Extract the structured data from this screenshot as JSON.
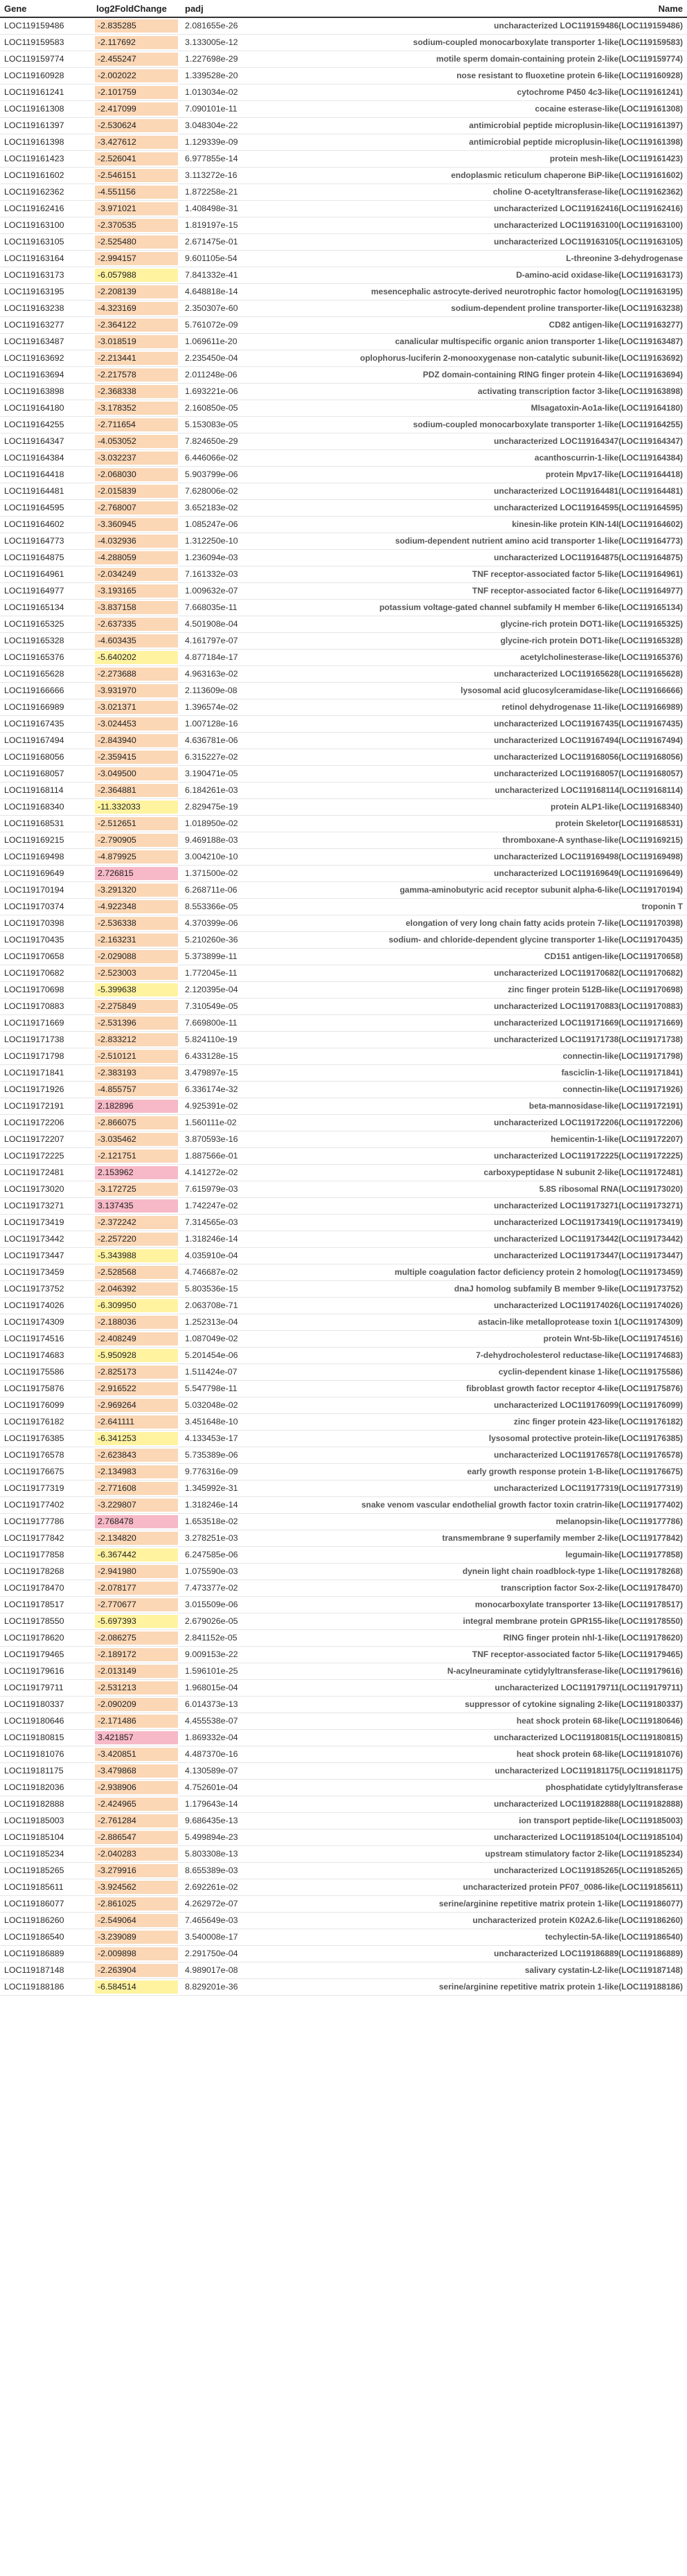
{
  "colors": {
    "neg": "#fbd7b6",
    "neg_strong": "#fff3a0",
    "pos": "#f7b9c7"
  },
  "headers": {
    "gene": "Gene",
    "lfc": "log2FoldChange",
    "padj": "padj",
    "name": "Name"
  },
  "rows": [
    [
      "LOC119159486",
      "-2.835285",
      "2.081655e-26",
      "uncharacterized LOC119159486(LOC119159486)"
    ],
    [
      "LOC119159583",
      "-2.117692",
      "3.133005e-12",
      "sodium-coupled monocarboxylate transporter 1-like(LOC119159583)"
    ],
    [
      "LOC119159774",
      "-2.455247",
      "1.227698e-29",
      "motile sperm domain-containing protein 2-like(LOC119159774)"
    ],
    [
      "LOC119160928",
      "-2.002022",
      "1.339528e-20",
      "nose resistant to fluoxetine protein 6-like(LOC119160928)"
    ],
    [
      "LOC119161241",
      "-2.101759",
      "1.013034e-02",
      "cytochrome P450 4c3-like(LOC119161241)"
    ],
    [
      "LOC119161308",
      "-2.417099",
      "7.090101e-11",
      "cocaine esterase-like(LOC119161308)"
    ],
    [
      "LOC119161397",
      "-2.530624",
      "3.048304e-22",
      "antimicrobial peptide microplusin-like(LOC119161397)"
    ],
    [
      "LOC119161398",
      "-3.427612",
      "1.129339e-09",
      "antimicrobial peptide microplusin-like(LOC119161398)"
    ],
    [
      "LOC119161423",
      "-2.526041",
      "6.977855e-14",
      "protein mesh-like(LOC119161423)"
    ],
    [
      "LOC119161602",
      "-2.546151",
      "3.113272e-16",
      "endoplasmic reticulum chaperone BiP-like(LOC119161602)"
    ],
    [
      "LOC119162362",
      "-4.551156",
      "1.872258e-21",
      "choline O-acetyltransferase-like(LOC119162362)"
    ],
    [
      "LOC119162416",
      "-3.971021",
      "1.408498e-31",
      "uncharacterized LOC119162416(LOC119162416)"
    ],
    [
      "LOC119163100",
      "-2.370535",
      "1.819197e-15",
      "uncharacterized LOC119163100(LOC119163100)"
    ],
    [
      "LOC119163105",
      "-2.525480",
      "2.671475e-01",
      "uncharacterized LOC119163105(LOC119163105)"
    ],
    [
      "LOC119163164",
      "-2.994157",
      "9.601105e-54",
      "L-threonine 3-dehydrogenase"
    ],
    [
      "LOC119163173",
      "-6.057988",
      "7.841332e-41",
      "D-amino-acid oxidase-like(LOC119163173)"
    ],
    [
      "LOC119163195",
      "-2.208139",
      "4.648818e-14",
      "mesencephalic astrocyte-derived neurotrophic factor homolog(LOC119163195)"
    ],
    [
      "LOC119163238",
      "-4.323169",
      "2.350307e-60",
      "sodium-dependent proline transporter-like(LOC119163238)"
    ],
    [
      "LOC119163277",
      "-2.364122",
      "5.761072e-09",
      "CD82 antigen-like(LOC119163277)"
    ],
    [
      "LOC119163487",
      "-3.018519",
      "1.069611e-20",
      "canalicular multispecific organic anion transporter 1-like(LOC119163487)"
    ],
    [
      "LOC119163692",
      "-2.213441",
      "2.235450e-04",
      "oplophorus-luciferin 2-monooxygenase non-catalytic subunit-like(LOC119163692)"
    ],
    [
      "LOC119163694",
      "-2.217578",
      "2.011248e-06",
      "PDZ domain-containing RING finger protein 4-like(LOC119163694)"
    ],
    [
      "LOC119163898",
      "-2.368338",
      "1.693221e-06",
      "activating transcription factor 3-like(LOC119163898)"
    ],
    [
      "LOC119164180",
      "-3.178352",
      "2.160850e-05",
      "MIsagatoxin-Ao1a-like(LOC119164180)"
    ],
    [
      "LOC119164255",
      "-2.711654",
      "5.153083e-05",
      "sodium-coupled monocarboxylate transporter 1-like(LOC119164255)"
    ],
    [
      "LOC119164347",
      "-4.053052",
      "7.824650e-29",
      "uncharacterized LOC119164347(LOC119164347)"
    ],
    [
      "LOC119164384",
      "-3.032237",
      "6.446066e-02",
      "acanthoscurrin-1-like(LOC119164384)"
    ],
    [
      "LOC119164418",
      "-2.068030",
      "5.903799e-06",
      "protein Mpv17-like(LOC119164418)"
    ],
    [
      "LOC119164481",
      "-2.015839",
      "7.628006e-02",
      "uncharacterized LOC119164481(LOC119164481)"
    ],
    [
      "LOC119164595",
      "-2.768007",
      "3.652183e-02",
      "uncharacterized LOC119164595(LOC119164595)"
    ],
    [
      "LOC119164602",
      "-3.360945",
      "1.085247e-06",
      "kinesin-like protein KIN-14I(LOC119164602)"
    ],
    [
      "LOC119164773",
      "-4.032936",
      "1.312250e-10",
      "sodium-dependent nutrient amino acid transporter 1-like(LOC119164773)"
    ],
    [
      "LOC119164875",
      "-4.288059",
      "1.236094e-03",
      "uncharacterized LOC119164875(LOC119164875)"
    ],
    [
      "LOC119164961",
      "-2.034249",
      "7.161332e-03",
      "TNF receptor-associated factor 5-like(LOC119164961)"
    ],
    [
      "LOC119164977",
      "-3.193165",
      "1.009632e-07",
      "TNF receptor-associated factor 6-like(LOC119164977)"
    ],
    [
      "LOC119165134",
      "-3.837158",
      "7.668035e-11",
      "potassium voltage-gated channel subfamily H member 6-like(LOC119165134)"
    ],
    [
      "LOC119165325",
      "-2.637335",
      "4.501908e-04",
      "glycine-rich protein DOT1-like(LOC119165325)"
    ],
    [
      "LOC119165328",
      "-4.603435",
      "4.161797e-07",
      "glycine-rich protein DOT1-like(LOC119165328)"
    ],
    [
      "LOC119165376",
      "-5.640202",
      "4.877184e-17",
      "acetylcholinesterase-like(LOC119165376)"
    ],
    [
      "LOC119165628",
      "-2.273688",
      "4.963163e-02",
      "uncharacterized LOC119165628(LOC119165628)"
    ],
    [
      "LOC119166666",
      "-3.931970",
      "2.113609e-08",
      "lysosomal acid glucosylceramidase-like(LOC119166666)"
    ],
    [
      "LOC119166989",
      "-3.021371",
      "1.396574e-02",
      "retinol dehydrogenase 11-like(LOC119166989)"
    ],
    [
      "LOC119167435",
      "-3.024453",
      "1.007128e-16",
      "uncharacterized LOC119167435(LOC119167435)"
    ],
    [
      "LOC119167494",
      "-2.843940",
      "4.636781e-06",
      "uncharacterized LOC119167494(LOC119167494)"
    ],
    [
      "LOC119168056",
      "-2.359415",
      "6.315227e-02",
      "uncharacterized LOC119168056(LOC119168056)"
    ],
    [
      "LOC119168057",
      "-3.049500",
      "3.190471e-05",
      "uncharacterized LOC119168057(LOC119168057)"
    ],
    [
      "LOC119168114",
      "-2.364881",
      "6.184261e-03",
      "uncharacterized LOC119168114(LOC119168114)"
    ],
    [
      "LOC119168340",
      "-11.332033",
      "2.829475e-19",
      "protein ALP1-like(LOC119168340)"
    ],
    [
      "LOC119168531",
      "-2.512651",
      "1.018950e-02",
      "protein Skeletor(LOC119168531)"
    ],
    [
      "LOC119169215",
      "-2.790905",
      "9.469188e-03",
      "thromboxane-A synthase-like(LOC119169215)"
    ],
    [
      "LOC119169498",
      "-4.879925",
      "3.004210e-10",
      "uncharacterized LOC119169498(LOC119169498)"
    ],
    [
      "LOC119169649",
      "2.726815",
      "1.371500e-02",
      "uncharacterized LOC119169649(LOC119169649)"
    ],
    [
      "LOC119170194",
      "-3.291320",
      "6.268711e-06",
      "gamma-aminobutyric acid receptor subunit alpha-6-like(LOC119170194)"
    ],
    [
      "LOC119170374",
      "-4.922348",
      "8.553366e-05",
      "troponin T"
    ],
    [
      "LOC119170398",
      "-2.536338",
      "4.370399e-06",
      "elongation of very long chain fatty acids protein 7-like(LOC119170398)"
    ],
    [
      "LOC119170435",
      "-2.163231",
      "5.210260e-36",
      "sodium- and chloride-dependent glycine transporter 1-like(LOC119170435)"
    ],
    [
      "LOC119170658",
      "-2.029088",
      "5.373899e-11",
      "CD151 antigen-like(LOC119170658)"
    ],
    [
      "LOC119170682",
      "-2.523003",
      "1.772045e-11",
      "uncharacterized LOC119170682(LOC119170682)"
    ],
    [
      "LOC119170698",
      "-5.399638",
      "2.120395e-04",
      "zinc finger protein 512B-like(LOC119170698)"
    ],
    [
      "LOC119170883",
      "-2.275849",
      "7.310549e-05",
      "uncharacterized LOC119170883(LOC119170883)"
    ],
    [
      "LOC119171669",
      "-2.531396",
      "7.669800e-11",
      "uncharacterized LOC119171669(LOC119171669)"
    ],
    [
      "LOC119171738",
      "-2.833212",
      "5.824110e-19",
      "uncharacterized LOC119171738(LOC119171738)"
    ],
    [
      "LOC119171798",
      "-2.510121",
      "6.433128e-15",
      "connectin-like(LOC119171798)"
    ],
    [
      "LOC119171841",
      "-2.383193",
      "3.479897e-15",
      "fasciclin-1-like(LOC119171841)"
    ],
    [
      "LOC119171926",
      "-4.855757",
      "6.336174e-32",
      "connectin-like(LOC119171926)"
    ],
    [
      "LOC119172191",
      "2.182896",
      "4.925391e-02",
      "beta-mannosidase-like(LOC119172191)"
    ],
    [
      "LOC119172206",
      "-2.866075",
      "1.560111e-02",
      "uncharacterized LOC119172206(LOC119172206)"
    ],
    [
      "LOC119172207",
      "-3.035462",
      "3.870593e-16",
      "hemicentin-1-like(LOC119172207)"
    ],
    [
      "LOC119172225",
      "-2.121751",
      "1.887566e-01",
      "uncharacterized LOC119172225(LOC119172225)"
    ],
    [
      "LOC119172481",
      "2.153962",
      "4.141272e-02",
      "carboxypeptidase N subunit 2-like(LOC119172481)"
    ],
    [
      "LOC119173020",
      "-3.172725",
      "7.615979e-03",
      "5.8S ribosomal RNA(LOC119173020)"
    ],
    [
      "LOC119173271",
      "3.137435",
      "1.742247e-02",
      "uncharacterized LOC119173271(LOC119173271)"
    ],
    [
      "LOC119173419",
      "-2.372242",
      "7.314565e-03",
      "uncharacterized LOC119173419(LOC119173419)"
    ],
    [
      "LOC119173442",
      "-2.257220",
      "1.318246e-14",
      "uncharacterized LOC119173442(LOC119173442)"
    ],
    [
      "LOC119173447",
      "-5.343988",
      "4.035910e-04",
      "uncharacterized LOC119173447(LOC119173447)"
    ],
    [
      "LOC119173459",
      "-2.528568",
      "4.746687e-02",
      "multiple coagulation factor deficiency protein 2 homolog(LOC119173459)"
    ],
    [
      "LOC119173752",
      "-2.046392",
      "5.803536e-15",
      "dnaJ homolog subfamily B member 9-like(LOC119173752)"
    ],
    [
      "LOC119174026",
      "-6.309950",
      "2.063708e-71",
      "uncharacterized LOC119174026(LOC119174026)"
    ],
    [
      "LOC119174309",
      "-2.188036",
      "1.252313e-04",
      "astacin-like metalloprotease toxin 1(LOC119174309)"
    ],
    [
      "LOC119174516",
      "-2.408249",
      "1.087049e-02",
      "protein Wnt-5b-like(LOC119174516)"
    ],
    [
      "LOC119174683",
      "-5.950928",
      "5.201454e-06",
      "7-dehydrocholesterol reductase-like(LOC119174683)"
    ],
    [
      "LOC119175586",
      "-2.825173",
      "1.511424e-07",
      "cyclin-dependent kinase 1-like(LOC119175586)"
    ],
    [
      "LOC119175876",
      "-2.916522",
      "5.547798e-11",
      "fibroblast growth factor receptor 4-like(LOC119175876)"
    ],
    [
      "LOC119176099",
      "-2.969264",
      "5.032048e-02",
      "uncharacterized LOC119176099(LOC119176099)"
    ],
    [
      "LOC119176182",
      "-2.641111",
      "3.451648e-10",
      "zinc finger protein 423-like(LOC119176182)"
    ],
    [
      "LOC119176385",
      "-6.341253",
      "4.133453e-17",
      "lysosomal protective protein-like(LOC119176385)"
    ],
    [
      "LOC119176578",
      "-2.623843",
      "5.735389e-06",
      "uncharacterized LOC119176578(LOC119176578)"
    ],
    [
      "LOC119176675",
      "-2.134983",
      "9.776316e-09",
      "early growth response protein 1-B-like(LOC119176675)"
    ],
    [
      "LOC119177319",
      "-2.771608",
      "1.345992e-31",
      "uncharacterized LOC119177319(LOC119177319)"
    ],
    [
      "LOC119177402",
      "-3.229807",
      "1.318246e-14",
      "snake venom vascular endothelial growth factor toxin cratrin-like(LOC119177402)"
    ],
    [
      "LOC119177786",
      "2.768478",
      "1.653518e-02",
      "melanopsin-like(LOC119177786)"
    ],
    [
      "LOC119177842",
      "-2.134820",
      "3.278251e-03",
      "transmembrane 9 superfamily member 2-like(LOC119177842)"
    ],
    [
      "LOC119177858",
      "-6.367442",
      "6.247585e-06",
      "legumain-like(LOC119177858)"
    ],
    [
      "LOC119178268",
      "-2.941980",
      "1.075590e-03",
      "dynein light chain roadblock-type 1-like(LOC119178268)"
    ],
    [
      "LOC119178470",
      "-2.078177",
      "7.473377e-02",
      "transcription factor Sox-2-like(LOC119178470)"
    ],
    [
      "LOC119178517",
      "-2.770677",
      "3.015509e-06",
      "monocarboxylate transporter 13-like(LOC119178517)"
    ],
    [
      "LOC119178550",
      "-5.697393",
      "2.679026e-05",
      "integral membrane protein GPR155-like(LOC119178550)"
    ],
    [
      "LOC119178620",
      "-2.086275",
      "2.841152e-05",
      "RING finger protein nhl-1-like(LOC119178620)"
    ],
    [
      "LOC119179465",
      "-2.189172",
      "9.009153e-22",
      "TNF receptor-associated factor 5-like(LOC119179465)"
    ],
    [
      "LOC119179616",
      "-2.013149",
      "1.596101e-25",
      "N-acylneuraminate cytidylyltransferase-like(LOC119179616)"
    ],
    [
      "LOC119179711",
      "-2.531213",
      "1.968015e-04",
      "uncharacterized LOC119179711(LOC119179711)"
    ],
    [
      "LOC119180337",
      "-2.090209",
      "6.014373e-13",
      "suppressor of cytokine signaling 2-like(LOC119180337)"
    ],
    [
      "LOC119180646",
      "-2.171486",
      "4.455538e-07",
      "heat shock protein 68-like(LOC119180646)"
    ],
    [
      "LOC119180815",
      "3.421857",
      "1.869332e-04",
      "uncharacterized LOC119180815(LOC119180815)"
    ],
    [
      "LOC119181076",
      "-3.420851",
      "4.487370e-16",
      "heat shock protein 68-like(LOC119181076)"
    ],
    [
      "LOC119181175",
      "-3.479868",
      "4.130589e-07",
      "uncharacterized LOC119181175(LOC119181175)"
    ],
    [
      "LOC119182036",
      "-2.938906",
      "4.752601e-04",
      "phosphatidate cytidylyltransferase"
    ],
    [
      "LOC119182888",
      "-2.424965",
      "1.179643e-14",
      "uncharacterized LOC119182888(LOC119182888)"
    ],
    [
      "LOC119185003",
      "-2.761284",
      "9.686435e-13",
      "ion transport peptide-like(LOC119185003)"
    ],
    [
      "LOC119185104",
      "-2.886547",
      "5.499894e-23",
      "uncharacterized LOC119185104(LOC119185104)"
    ],
    [
      "LOC119185234",
      "-2.040283",
      "5.803308e-13",
      "upstream stimulatory factor 2-like(LOC119185234)"
    ],
    [
      "LOC119185265",
      "-3.279916",
      "8.655389e-03",
      "uncharacterized LOC119185265(LOC119185265)"
    ],
    [
      "LOC119185611",
      "-3.924562",
      "2.692261e-02",
      "uncharacterized protein PF07_0086-like(LOC119185611)"
    ],
    [
      "LOC119186077",
      "-2.861025",
      "4.262972e-07",
      "serine/arginine repetitive matrix protein 1-like(LOC119186077)"
    ],
    [
      "LOC119186260",
      "-2.549064",
      "7.465649e-03",
      "uncharacterized protein K02A2.6-like(LOC119186260)"
    ],
    [
      "LOC119186540",
      "-3.239089",
      "3.540008e-17",
      "techylectin-5A-like(LOC119186540)"
    ],
    [
      "LOC119186889",
      "-2.009898",
      "2.291750e-04",
      "uncharacterized LOC119186889(LOC119186889)"
    ],
    [
      "LOC119187148",
      "-2.263904",
      "4.989017e-08",
      "salivary cystatin-L2-like(LOC119187148)"
    ],
    [
      "LOC119188186",
      "-6.584514",
      "8.829201e-36",
      "serine/arginine repetitive matrix protein 1-like(LOC119188186)"
    ]
  ]
}
